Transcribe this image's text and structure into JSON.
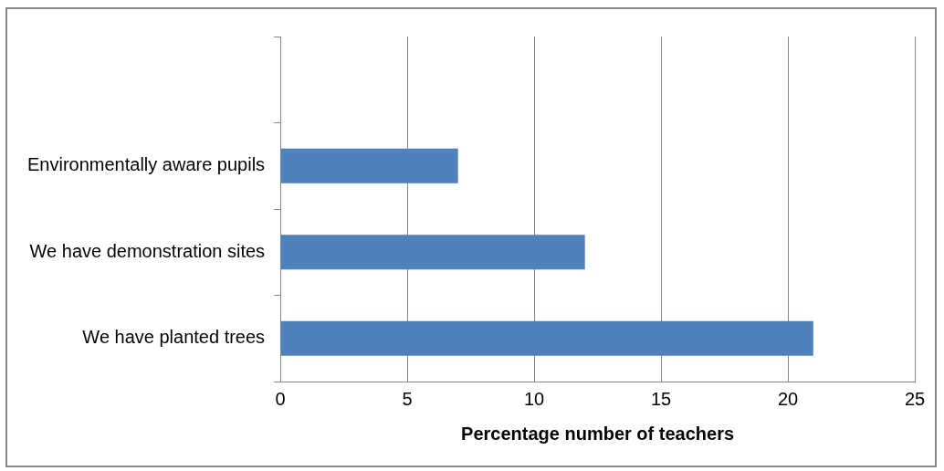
{
  "chart_data": {
    "type": "bar",
    "orientation": "horizontal",
    "xlabel": "Percentage number of teachers",
    "categories": [
      null,
      "Environmentally aware pupils",
      "We have demonstration sites",
      "We have planted trees"
    ],
    "values": [
      null,
      7,
      12,
      21
    ],
    "color": "#4f81bd",
    "xlim": [
      0,
      25
    ],
    "xticks": [
      0,
      5,
      10,
      15,
      20,
      25
    ],
    "grid": "x",
    "legend": false
  }
}
